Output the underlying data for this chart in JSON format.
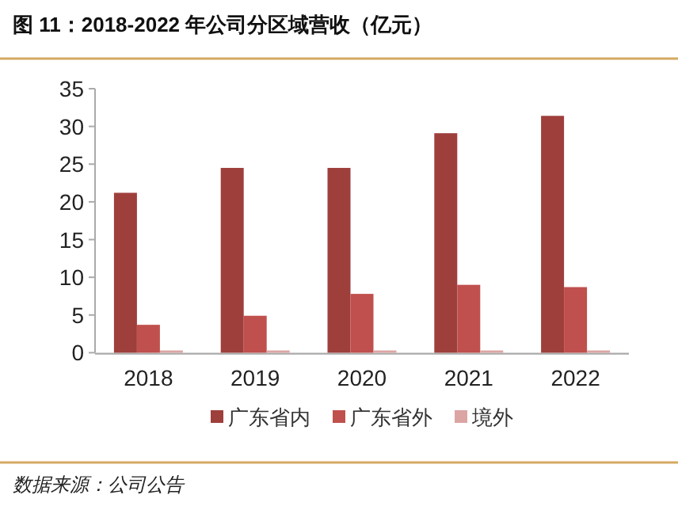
{
  "chart_data": {
    "type": "bar",
    "title": "图 11：2018-2022 年公司分区域营收（亿元）",
    "categories": [
      "2018",
      "2019",
      "2020",
      "2021",
      "2022"
    ],
    "series": [
      {
        "name": "广东省内",
        "color": "#9e3f3c",
        "values": [
          21.2,
          24.5,
          24.5,
          29.1,
          31.4
        ]
      },
      {
        "name": "广东省外",
        "color": "#c0504d",
        "values": [
          3.7,
          4.9,
          7.8,
          9.0,
          8.7
        ]
      },
      {
        "name": "境外",
        "color": "#dba5a3",
        "values": [
          0.3,
          0.3,
          0.3,
          0.3,
          0.3
        ]
      }
    ],
    "ylim": [
      0,
      35
    ],
    "yticks": [
      0,
      5,
      10,
      15,
      20,
      25,
      30,
      35
    ],
    "grid": false,
    "legend": "bottom",
    "annotations": [
      "数据来源：公司公告"
    ]
  }
}
